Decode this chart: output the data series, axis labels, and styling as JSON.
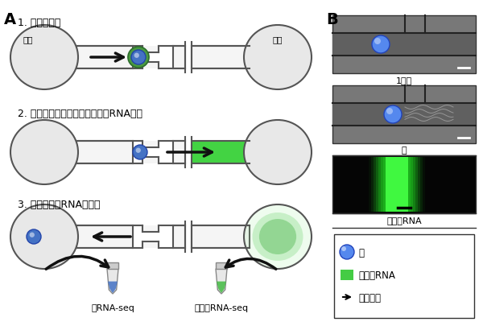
{
  "title_A": "A",
  "title_B": "B",
  "step1_label": "1. 細胞の捕捉",
  "step2_label": "2. 電気的な細胞膜破砕と細胞質RNA抽出",
  "step3_label": "3. 核と細胞質RNAの回収",
  "inlet_label": "入口",
  "outlet_label": "出口",
  "nuclear_rna_label": "核RNA-seq",
  "cyto_rna_label": "細胞質RNA-seq",
  "legend_nucleus": "核",
  "legend_cyto": "細胞質RNA",
  "legend_path": "移動経路",
  "photo_label1": "1細胞",
  "photo_label2": "核",
  "photo_label3": "細胞質RNA",
  "bg_color": "#ffffff",
  "nucleus_blue": "#4472c4",
  "nucleus_light_blue": "#a8c4e0",
  "cyto_green": "#00aa00",
  "cyto_light_green": "#90ee90",
  "cell_fill": "#e8e8e8",
  "cell_stroke": "#555555",
  "channel_fill": "#f0f0f0",
  "tube_color": "#cccccc",
  "lw": 1.5
}
